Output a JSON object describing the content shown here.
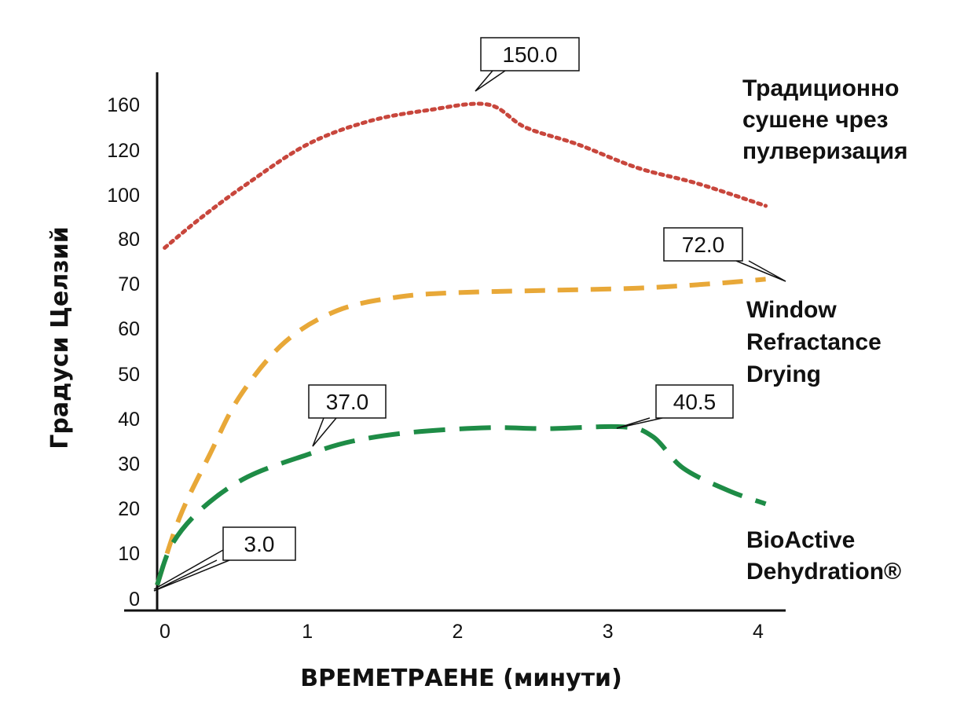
{
  "chart_data": {
    "type": "line",
    "xlabel": "ВРЕМЕТРАЕНЕ (минути)",
    "ylabel": "Градуси Целзий",
    "x_ticks": [
      "0",
      "1",
      "2",
      "3",
      "4"
    ],
    "y_ticks": [
      "0",
      "10",
      "20",
      "30",
      "40",
      "50",
      "60",
      "70",
      "80",
      "100",
      "120",
      "160"
    ],
    "grid": false,
    "series": [
      {
        "name_lines": [
          "Традиционно",
          "сушене чрез",
          "пулверизация"
        ],
        "color": "#c8463c",
        "style": "dotted",
        "points": [
          [
            0.05,
            78
          ],
          [
            0.3,
            90
          ],
          [
            0.6,
            105
          ],
          [
            1.0,
            125
          ],
          [
            1.4,
            145
          ],
          [
            1.8,
            155
          ],
          [
            2.2,
            160
          ],
          [
            2.45,
            140
          ],
          [
            2.8,
            125
          ],
          [
            3.2,
            112
          ],
          [
            3.6,
            105
          ],
          [
            4.05,
            95
          ]
        ]
      },
      {
        "name_lines": [
          "Window",
          "Refractance",
          "Drying"
        ],
        "color": "#e8a838",
        "style": "dashed",
        "points": [
          [
            0.0,
            3
          ],
          [
            0.15,
            18
          ],
          [
            0.35,
            32
          ],
          [
            0.55,
            45
          ],
          [
            0.85,
            57
          ],
          [
            1.2,
            64
          ],
          [
            1.6,
            67
          ],
          [
            2.0,
            68
          ],
          [
            2.6,
            68.5
          ],
          [
            3.2,
            69
          ],
          [
            3.7,
            70
          ],
          [
            4.05,
            71
          ]
        ]
      },
      {
        "name_lines": [
          "BioActive",
          "Dehydration®"
        ],
        "color": "#1e8c46",
        "style": "longdash",
        "points": [
          [
            0.0,
            3
          ],
          [
            0.1,
            12
          ],
          [
            0.3,
            20
          ],
          [
            0.6,
            27
          ],
          [
            1.0,
            32
          ],
          [
            1.3,
            35
          ],
          [
            1.7,
            37
          ],
          [
            2.2,
            38
          ],
          [
            2.6,
            37.8
          ],
          [
            3.1,
            38.2
          ],
          [
            3.3,
            36
          ],
          [
            3.5,
            29
          ],
          [
            3.8,
            24
          ],
          [
            4.05,
            21
          ]
        ]
      }
    ],
    "annotations": [
      {
        "text": "150.0",
        "series": 0
      },
      {
        "text": "72.0",
        "series": 1
      },
      {
        "text": "37.0",
        "series": 2
      },
      {
        "text": "40.5",
        "series": 2
      },
      {
        "text": "3.0",
        "series": 2
      }
    ]
  }
}
